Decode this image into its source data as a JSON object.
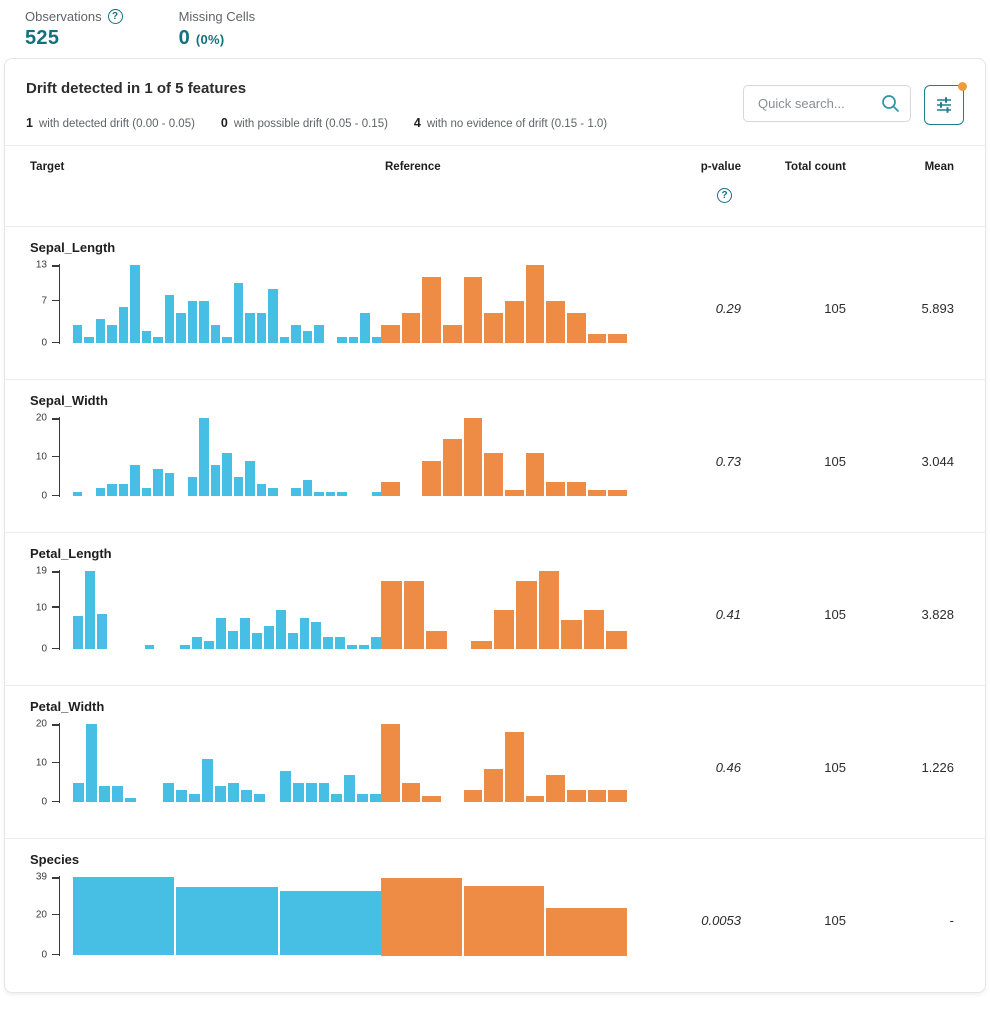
{
  "stats": {
    "observations_label": "Observations",
    "observations_value": "525",
    "missing_label": "Missing Cells",
    "missing_value": "0",
    "missing_pct": "(0%)"
  },
  "panel": {
    "title": "Drift detected in 1 of 5 features",
    "legend": [
      {
        "count": "1",
        "label": "with detected drift (0.00 - 0.05)"
      },
      {
        "count": "0",
        "label": "with possible drift (0.05 - 0.15)"
      },
      {
        "count": "4",
        "label": "with no evidence of drift (0.15 - 1.0)"
      }
    ],
    "search_placeholder": "Quick search..."
  },
  "table": {
    "columns": [
      "Target",
      "Reference",
      "p-value",
      "Total count",
      "Mean"
    ]
  },
  "colors": {
    "target_bar": "#47bfe4",
    "reference_bar": "#ee8b44",
    "accent_teal": "#15707e",
    "notification_dot": "#ef9b3e"
  },
  "chart_data": [
    {
      "name": "Sepal_Length",
      "type": "histogram",
      "ymax": 13,
      "yticks": [
        13,
        7,
        0
      ],
      "p_value": "0.29",
      "total_count": "105",
      "mean": "5.893",
      "series": [
        {
          "name": "Target",
          "values": [
            3,
            1,
            4,
            3,
            6,
            13,
            2,
            1,
            8,
            5,
            7,
            7,
            3,
            1,
            10,
            5,
            5,
            9,
            1,
            3,
            2,
            3,
            null,
            1,
            1,
            5,
            1
          ]
        },
        {
          "name": "Reference",
          "values": [
            3,
            5,
            11,
            3,
            11,
            5,
            7,
            13,
            7,
            5,
            1.5,
            1.5
          ]
        }
      ]
    },
    {
      "name": "Sepal_Width",
      "type": "histogram",
      "ymax": 20,
      "yticks": [
        20,
        10,
        0
      ],
      "p_value": "0.73",
      "total_count": "105",
      "mean": "3.044",
      "series": [
        {
          "name": "Target",
          "values": [
            1,
            null,
            2,
            3,
            3,
            8,
            2,
            7,
            6,
            null,
            5,
            20,
            8,
            11,
            5,
            9,
            3,
            2,
            null,
            2,
            4,
            1,
            1,
            1,
            null,
            null,
            1
          ]
        },
        {
          "name": "Reference",
          "values": [
            3.5,
            null,
            9,
            14.5,
            20,
            11,
            1.5,
            11,
            3.5,
            3.5,
            1.5,
            1.5
          ]
        }
      ]
    },
    {
      "name": "Petal_Length",
      "type": "histogram",
      "ymax": 19,
      "yticks": [
        19,
        10,
        0
      ],
      "p_value": "0.41",
      "total_count": "105",
      "mean": "3.828",
      "series": [
        {
          "name": "Target",
          "values": [
            8,
            19,
            8.5,
            null,
            null,
            null,
            1,
            null,
            null,
            1,
            3,
            2,
            7.5,
            4.5,
            7.5,
            4,
            5.5,
            9.5,
            4,
            7.5,
            6.5,
            3,
            3,
            1,
            1,
            3
          ]
        },
        {
          "name": "Reference",
          "values": [
            16.5,
            16.5,
            4.5,
            null,
            2,
            9.5,
            16.5,
            19,
            7,
            9.5,
            4.5
          ]
        }
      ]
    },
    {
      "name": "Petal_Width",
      "type": "histogram",
      "ymax": 20,
      "yticks": [
        20,
        10,
        0
      ],
      "p_value": "0.46",
      "total_count": "105",
      "mean": "1.226",
      "series": [
        {
          "name": "Target",
          "values": [
            5,
            20,
            4,
            4,
            1,
            null,
            null,
            5,
            3,
            2,
            11,
            4,
            5,
            3,
            2,
            null,
            8,
            5,
            5,
            5,
            2,
            7,
            2,
            2
          ]
        },
        {
          "name": "Reference",
          "values": [
            20,
            5,
            1.5,
            null,
            3,
            8.5,
            18,
            1.5,
            7,
            3,
            3,
            3
          ]
        }
      ]
    },
    {
      "name": "Species",
      "type": "histogram",
      "ymax": 39,
      "yticks": [
        39,
        20,
        0
      ],
      "p_value": "0.0053",
      "total_count": "105",
      "mean": "-",
      "series": [
        {
          "name": "Target",
          "values": [
            39,
            34,
            32
          ]
        },
        {
          "name": "Reference",
          "values": [
            39,
            35,
            24
          ]
        }
      ]
    }
  ]
}
